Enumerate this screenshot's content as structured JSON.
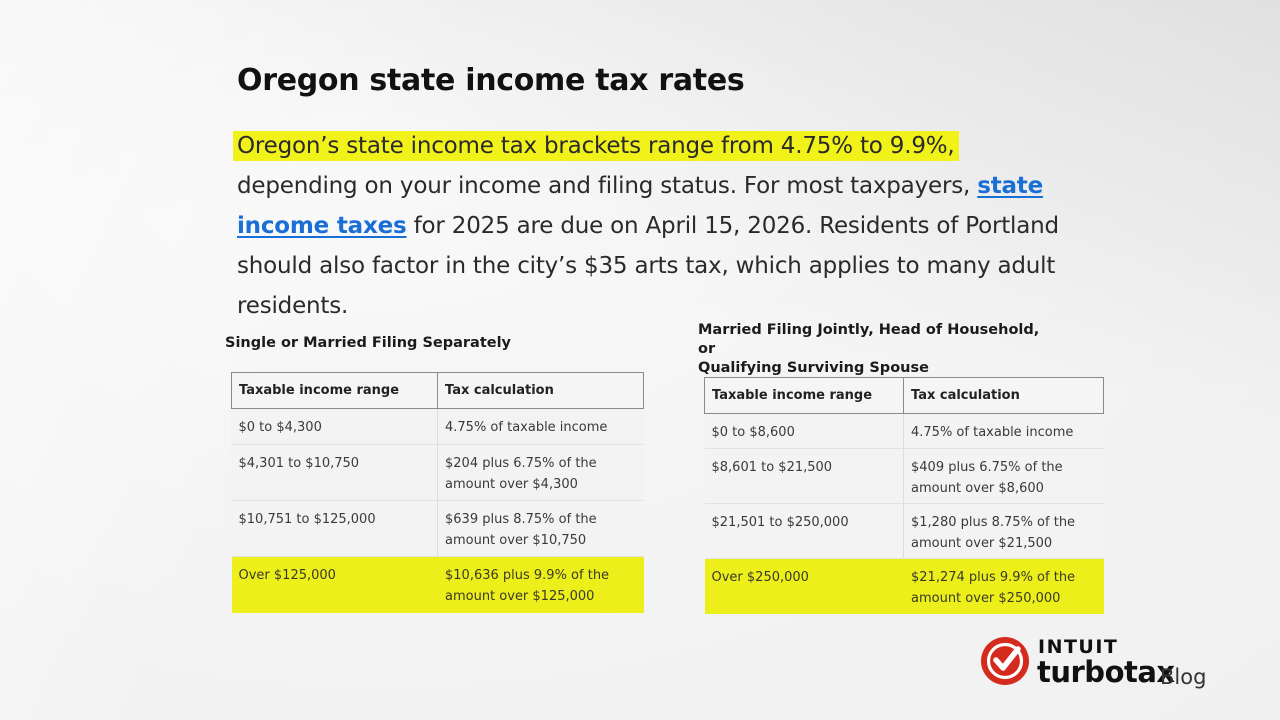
{
  "title": "Oregon state income tax rates",
  "intro": {
    "highlighted": "Oregon’s state income tax brackets range from 4.75% to 9.9%,",
    "text_1": " depending on your income and filing status. For most taxpayers, ",
    "link": "state income taxes",
    "text_2": " for 2025 are due on April 15, 2026. Residents of Portland should also factor in the city’s $35 arts tax, which applies to many adult residents."
  },
  "table_single": {
    "heading": "Single or Married Filing Separately",
    "headers": [
      "Taxable income range",
      "Tax calculation"
    ],
    "rows": [
      {
        "range": "$0 to $4,300",
        "calc": [
          "4.75% of taxable income"
        ]
      },
      {
        "range": "$4,301 to $10,750",
        "calc": [
          "$204 plus 6.75% of the",
          "amount over $4,300"
        ]
      },
      {
        "range": "$10,751 to $125,000",
        "calc": [
          "$639 plus 8.75% of the",
          "amount over $10,750"
        ]
      },
      {
        "range": "Over $125,000",
        "calc": [
          "$10,636 plus 9.9% of the",
          "amount over $125,000"
        ]
      }
    ]
  },
  "table_joint": {
    "heading": [
      "Married Filing Jointly, Head of Household, or",
      "Qualifying Surviving Spouse"
    ],
    "headers": [
      "Taxable income range",
      "Tax calculation"
    ],
    "rows": [
      {
        "range": "$0 to $8,600",
        "calc": [
          "4.75% of taxable income"
        ]
      },
      {
        "range": "$8,601 to $21,500",
        "calc": [
          "$409 plus 6.75% of the",
          "amount over $8,600"
        ]
      },
      {
        "range": "$21,501 to $250,000",
        "calc": [
          "$1,280 plus 8.75% of the",
          "amount over $21,500"
        ]
      },
      {
        "range": "Over $250,000",
        "calc": [
          "$21,274 plus 9.9% of the",
          "amount over $250,000"
        ]
      }
    ]
  },
  "brand": {
    "company": "INTUIT",
    "product": "turbotax",
    "suffix": "Blog",
    "badge_icon": "checkmark-icon",
    "badge_color": "#d52b1e",
    "highlight_color": "#f2f21b",
    "link_color": "#1a6fd6"
  }
}
